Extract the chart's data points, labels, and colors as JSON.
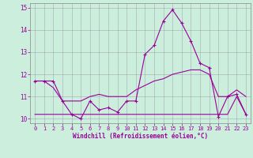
{
  "xlabel": "Windchill (Refroidissement éolien,°C)",
  "background_color": "#cceedd",
  "line_color": "#990099",
  "grid_color": "#aabbcc",
  "xlim": [
    -0.5,
    23.5
  ],
  "ylim": [
    9.8,
    15.2
  ],
  "yticks": [
    10,
    11,
    12,
    13,
    14,
    15
  ],
  "xticks": [
    0,
    1,
    2,
    3,
    4,
    5,
    6,
    7,
    8,
    9,
    10,
    11,
    12,
    13,
    14,
    15,
    16,
    17,
    18,
    19,
    20,
    21,
    22,
    23
  ],
  "line1_x": [
    0,
    1,
    2,
    3,
    4,
    5,
    6,
    7,
    8,
    9,
    10,
    11,
    12,
    13,
    14,
    15,
    16,
    17,
    18,
    19,
    20,
    21,
    22,
    23
  ],
  "line1_y": [
    11.7,
    11.7,
    11.7,
    10.8,
    10.2,
    10.0,
    10.8,
    10.4,
    10.5,
    10.3,
    10.8,
    10.8,
    12.9,
    13.3,
    14.4,
    14.9,
    14.3,
    13.5,
    12.5,
    12.3,
    10.1,
    11.0,
    11.1,
    10.2
  ],
  "line2_x": [
    0,
    1,
    2,
    3,
    4,
    5,
    6,
    7,
    8,
    9,
    10,
    11,
    12,
    13,
    14,
    15,
    16,
    17,
    18,
    19,
    20,
    21,
    22,
    23
  ],
  "line2_y": [
    11.7,
    11.7,
    11.4,
    10.8,
    10.8,
    10.8,
    11.0,
    11.1,
    11.0,
    11.0,
    11.0,
    11.3,
    11.5,
    11.7,
    11.8,
    12.0,
    12.1,
    12.2,
    12.2,
    12.0,
    11.0,
    11.0,
    11.3,
    11.0
  ],
  "line3_x": [
    0,
    1,
    2,
    3,
    4,
    5,
    6,
    7,
    8,
    9,
    10,
    11,
    12,
    13,
    14,
    15,
    16,
    17,
    18,
    19,
    20,
    21,
    22,
    23
  ],
  "line3_y": [
    10.2,
    10.2,
    10.2,
    10.2,
    10.2,
    10.2,
    10.2,
    10.2,
    10.2,
    10.2,
    10.2,
    10.2,
    10.2,
    10.2,
    10.2,
    10.2,
    10.2,
    10.2,
    10.2,
    10.2,
    10.2,
    10.2,
    11.0,
    10.2
  ]
}
